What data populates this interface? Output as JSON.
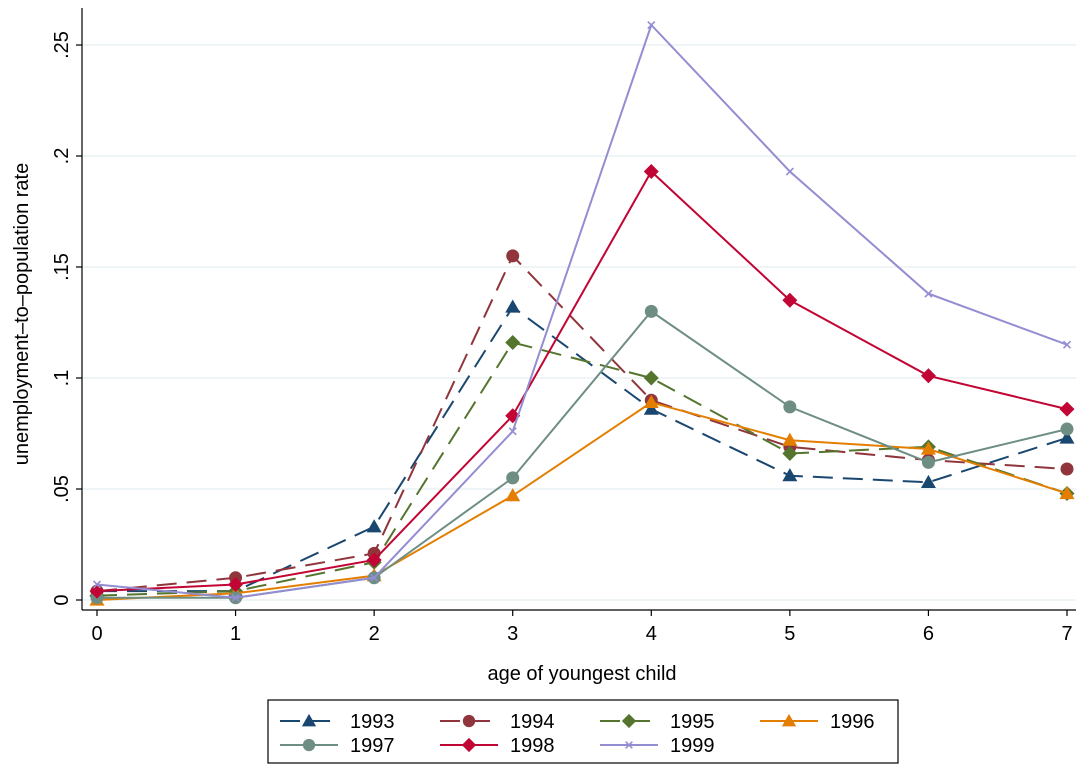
{
  "chart_data": {
    "type": "line",
    "title": "",
    "xlabel": "age of youngest child",
    "ylabel": "unemployment–to–population rate",
    "x": [
      0,
      1,
      2,
      3,
      4,
      5,
      6,
      7
    ],
    "x_tick_labels": [
      "0",
      "1",
      "2",
      "3",
      "4",
      "5",
      "6",
      "7"
    ],
    "xlim": [
      0,
      7
    ],
    "ylim": [
      0,
      0.25
    ],
    "y_ticks": [
      0,
      0.05,
      0.1,
      0.15,
      0.2,
      0.25
    ],
    "y_tick_labels": [
      "0",
      ".05",
      ".1",
      ".15",
      ".2",
      ".25"
    ],
    "grid": "horizontal",
    "legend_position": "bottom",
    "series": [
      {
        "name": "1993",
        "color": "#1a476f",
        "dash": "dashed",
        "marker": "triangle",
        "values": [
          0.004,
          0.004,
          0.033,
          0.132,
          0.086,
          0.056,
          0.053,
          0.073
        ]
      },
      {
        "name": "1994",
        "color": "#90353b",
        "dash": "dashed",
        "marker": "circle",
        "values": [
          0.004,
          0.01,
          0.021,
          0.155,
          0.09,
          0.069,
          0.063,
          0.059
        ]
      },
      {
        "name": "1995",
        "color": "#55752f",
        "dash": "dashed",
        "marker": "diamond",
        "values": [
          0.002,
          0.004,
          0.017,
          0.116,
          0.1,
          0.066,
          0.069,
          0.048
        ]
      },
      {
        "name": "1996",
        "color": "#e37e00",
        "dash": "solid",
        "marker": "triangle",
        "values": [
          0.0,
          0.003,
          0.011,
          0.047,
          0.089,
          0.072,
          0.068,
          0.048
        ]
      },
      {
        "name": "1997",
        "color": "#6e8e84",
        "dash": "solid",
        "marker": "circle",
        "values": [
          0.001,
          0.001,
          0.01,
          0.055,
          0.13,
          0.087,
          0.062,
          0.077
        ]
      },
      {
        "name": "1998",
        "color": "#c10534",
        "dash": "solid",
        "marker": "diamond",
        "values": [
          0.004,
          0.007,
          0.018,
          0.083,
          0.193,
          0.135,
          0.101,
          0.086
        ]
      },
      {
        "name": "1999",
        "color": "#938dd2",
        "dash": "solid",
        "marker": "x",
        "values": [
          0.007,
          0.001,
          0.01,
          0.076,
          0.259,
          0.193,
          0.138,
          0.115
        ]
      }
    ]
  }
}
